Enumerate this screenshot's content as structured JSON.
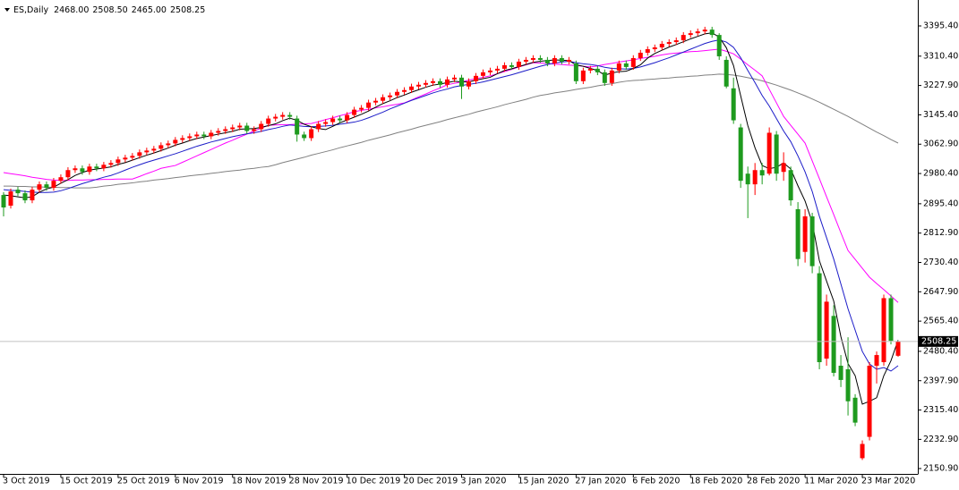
{
  "chart_data": {
    "type": "candlestick",
    "header": {
      "symbol": "ES,Daily",
      "values": [
        2468,
        2508.5,
        2465,
        2508.25
      ],
      "value_labels": [
        "2468.00",
        "2508.50",
        "2465.00",
        "2508.25"
      ]
    },
    "categories": [
      "3 Oct 2019",
      null,
      null,
      null,
      null,
      null,
      null,
      null,
      "15 Oct 2019",
      null,
      null,
      null,
      null,
      null,
      null,
      null,
      "25 Oct 2019",
      null,
      null,
      null,
      null,
      null,
      null,
      null,
      "6 Nov 2019",
      null,
      null,
      null,
      null,
      null,
      null,
      null,
      "18 Nov 2019",
      null,
      null,
      null,
      null,
      null,
      null,
      null,
      "28 Nov 2019",
      null,
      null,
      null,
      null,
      null,
      null,
      null,
      "10 Dec 2019",
      null,
      null,
      null,
      null,
      null,
      null,
      null,
      "20 Dec 2019",
      null,
      null,
      null,
      null,
      null,
      null,
      null,
      "3 Jan 2020",
      null,
      null,
      null,
      null,
      null,
      null,
      null,
      "15 Jan 2020",
      null,
      null,
      null,
      null,
      null,
      null,
      null,
      "27 Jan 2020",
      null,
      null,
      null,
      null,
      null,
      null,
      null,
      "6 Feb 2020",
      null,
      null,
      null,
      null,
      null,
      null,
      null,
      "18 Feb 2020",
      null,
      null,
      null,
      null,
      null,
      null,
      null,
      "28 Feb 2020",
      null,
      null,
      null,
      null,
      null,
      null,
      null,
      "11 Mar 2020",
      null,
      null,
      null,
      null,
      null,
      null,
      null,
      "23 Mar 2020",
      null,
      null,
      null,
      null,
      null
    ],
    "open": [
      2920,
      2890,
      2935,
      2925,
      2905,
      2935,
      2950,
      2940,
      2960,
      2970,
      2990,
      2995,
      2985,
      3000,
      2995,
      3005,
      3010,
      3020,
      3025,
      3030,
      3040,
      3045,
      3050,
      3060,
      3065,
      3075,
      3080,
      3085,
      3090,
      3085,
      3095,
      3100,
      3105,
      3110,
      3115,
      3100,
      3105,
      3120,
      3135,
      3140,
      3145,
      3135,
      3090,
      3080,
      3105,
      3120,
      3125,
      3135,
      3130,
      3145,
      3160,
      3165,
      3180,
      3185,
      3195,
      3200,
      3210,
      3215,
      3225,
      3230,
      3235,
      3240,
      3230,
      3245,
      3250,
      3225,
      3240,
      3255,
      3265,
      3270,
      3275,
      3285,
      3280,
      3295,
      3300,
      3305,
      3300,
      3290,
      3305,
      3295,
      3290,
      3240,
      3270,
      3275,
      3265,
      3235,
      3270,
      3290,
      3280,
      3305,
      3320,
      3330,
      3335,
      3345,
      3350,
      3355,
      3370,
      3375,
      3380,
      3385,
      3370,
      3300,
      3220,
      3110,
      2980,
      2950,
      2990,
      2980,
      3090,
      2985,
      2990,
      2880,
      2760,
      2860,
      2700,
      2460,
      2580,
      2440,
      2430,
      2350,
      2180,
      2240,
      2440,
      2450,
      2630,
      2468
    ],
    "high": [
      2928,
      2938,
      2943,
      2933,
      2943,
      2958,
      2958,
      2968,
      2978,
      2998,
      3003,
      3003,
      3008,
      3008,
      3013,
      3018,
      3028,
      3033,
      3038,
      3048,
      3053,
      3058,
      3068,
      3073,
      3083,
      3088,
      3093,
      3098,
      3098,
      3103,
      3108,
      3113,
      3118,
      3123,
      3123,
      3113,
      3128,
      3143,
      3148,
      3153,
      3153,
      3143,
      3098,
      3113,
      3128,
      3133,
      3143,
      3143,
      3153,
      3168,
      3173,
      3188,
      3193,
      3203,
      3208,
      3218,
      3223,
      3233,
      3238,
      3243,
      3248,
      3248,
      3253,
      3258,
      3258,
      3248,
      3263,
      3273,
      3278,
      3283,
      3293,
      3293,
      3303,
      3308,
      3313,
      3313,
      3308,
      3313,
      3313,
      3308,
      3298,
      3278,
      3283,
      3283,
      3273,
      3278,
      3298,
      3298,
      3313,
      3328,
      3338,
      3343,
      3353,
      3358,
      3363,
      3378,
      3383,
      3388,
      3393,
      3393,
      3375,
      3310,
      3250,
      3120,
      3000,
      3010,
      3010,
      3110,
      3100,
      3040,
      3000,
      2900,
      2880,
      2870,
      2720,
      2640,
      2610,
      2470,
      2520,
      2360,
      2230,
      2450,
      2480,
      2640,
      2640,
      2508.5
    ],
    "low": [
      2860,
      2882,
      2917,
      2897,
      2897,
      2927,
      2932,
      2932,
      2952,
      2962,
      2982,
      2977,
      2977,
      2987,
      2987,
      2997,
      3002,
      3012,
      3017,
      3022,
      3032,
      3037,
      3042,
      3052,
      3057,
      3067,
      3072,
      3077,
      3077,
      3077,
      3087,
      3092,
      3097,
      3102,
      3092,
      3092,
      3097,
      3112,
      3127,
      3132,
      3132,
      3070,
      3072,
      3072,
      3097,
      3112,
      3117,
      3122,
      3122,
      3137,
      3152,
      3157,
      3172,
      3177,
      3187,
      3192,
      3202,
      3207,
      3217,
      3222,
      3227,
      3222,
      3222,
      3237,
      3190,
      3217,
      3232,
      3247,
      3257,
      3262,
      3267,
      3272,
      3272,
      3287,
      3292,
      3292,
      3282,
      3282,
      3287,
      3287,
      3232,
      3232,
      3262,
      3257,
      3227,
      3227,
      3262,
      3272,
      3272,
      3297,
      3312,
      3322,
      3327,
      3337,
      3342,
      3347,
      3362,
      3367,
      3372,
      3362,
      3300,
      3220,
      3120,
      2940,
      2855,
      2920,
      2950,
      2975,
      2960,
      2960,
      2890,
      2720,
      2730,
      2700,
      2430,
      2440,
      2410,
      2380,
      2300,
      2270,
      2175,
      2230,
      2390,
      2440,
      2500,
      2465
    ],
    "close": [
      2885,
      2930,
      2925,
      2905,
      2935,
      2950,
      2940,
      2960,
      2970,
      2990,
      2995,
      2985,
      3000,
      2995,
      3005,
      3010,
      3020,
      3025,
      3030,
      3040,
      3045,
      3050,
      3060,
      3065,
      3075,
      3080,
      3085,
      3090,
      3085,
      3095,
      3100,
      3105,
      3110,
      3115,
      3100,
      3105,
      3120,
      3135,
      3140,
      3145,
      3140,
      3090,
      3080,
      3105,
      3120,
      3125,
      3135,
      3130,
      3145,
      3160,
      3165,
      3180,
      3185,
      3195,
      3200,
      3210,
      3215,
      3225,
      3230,
      3235,
      3240,
      3230,
      3245,
      3250,
      3225,
      3240,
      3255,
      3265,
      3270,
      3275,
      3285,
      3280,
      3295,
      3300,
      3305,
      3300,
      3290,
      3305,
      3295,
      3300,
      3240,
      3270,
      3275,
      3265,
      3235,
      3270,
      3290,
      3280,
      3305,
      3320,
      3330,
      3335,
      3345,
      3350,
      3355,
      3370,
      3375,
      3380,
      3385,
      3370,
      3310,
      3225,
      3130,
      2960,
      2950,
      2990,
      2975,
      3095,
      2980,
      3010,
      2905,
      2740,
      2860,
      2720,
      2450,
      2620,
      2420,
      2400,
      2340,
      2280,
      2220,
      2440,
      2470,
      2630,
      2510,
      2508.25
    ],
    "up_color": "#ff0000",
    "down_color": "#1e9a1e",
    "lines": [
      {
        "color": "#808080",
        "values": [
          2945,
          2945,
          2944,
          2944,
          2943,
          2943,
          2942,
          2942,
          2941,
          2941,
          2940,
          2940,
          2940,
          2942,
          2945,
          2947,
          2950,
          2952,
          2954,
          2957,
          2959,
          2962,
          2964,
          2966,
          2969,
          2971,
          2974,
          2976,
          2978,
          2981,
          2983,
          2986,
          2988,
          2990,
          2993,
          2995,
          2998,
          3000,
          3005,
          3011,
          3016,
          3021,
          3026,
          3032,
          3037,
          3042,
          3047,
          3053,
          3058,
          3063,
          3068,
          3074,
          3079,
          3084,
          3089,
          3095,
          3100,
          3105,
          3111,
          3116,
          3121,
          3126,
          3132,
          3137,
          3142,
          3147,
          3153,
          3158,
          3163,
          3168,
          3174,
          3179,
          3184,
          3189,
          3195,
          3200,
          3203,
          3207,
          3210,
          3213,
          3217,
          3220,
          3223,
          3227,
          3230,
          3233,
          3237,
          3240,
          3242,
          3243,
          3245,
          3246,
          3248,
          3249,
          3251,
          3252,
          3254,
          3255,
          3257,
          3258,
          3260,
          3259,
          3257,
          3254,
          3250,
          3246,
          3241,
          3235,
          3229,
          3222,
          3215,
          3207,
          3199,
          3190,
          3181,
          3171,
          3161,
          3151,
          3141,
          3130,
          3119,
          3108,
          3097,
          3087,
          3076,
          3066
        ]
      },
      {
        "color": "#ff00ff",
        "values": [
          2983,
          2980,
          2977,
          2974,
          2970,
          2967,
          2964,
          2962,
          2961,
          2961,
          2962,
          2962,
          2963,
          2963,
          2964,
          2964,
          2965,
          2965,
          2965,
          2972,
          2980,
          2987,
          2995,
          2999,
          3003,
          3012,
          3021,
          3030,
          3039,
          3048,
          3057,
          3066,
          3074,
          3083,
          3091,
          3100,
          3108,
          3116,
          3117,
          3118,
          3118,
          3119,
          3120,
          3121,
          3126,
          3132,
          3137,
          3143,
          3148,
          3154,
          3158,
          3161,
          3165,
          3168,
          3172,
          3175,
          3179,
          3187,
          3196,
          3204,
          3213,
          3221,
          3230,
          3234,
          3238,
          3243,
          3247,
          3251,
          3255,
          3261,
          3267,
          3273,
          3280,
          3286,
          3292,
          3291,
          3290,
          3288,
          3287,
          3285,
          3284,
          3282,
          3280,
          3283,
          3287,
          3290,
          3294,
          3297,
          3300,
          3304,
          3307,
          3310,
          3314,
          3317,
          3319,
          3321,
          3323,
          3324,
          3326,
          3328,
          3330,
          3324,
          3317,
          3302,
          3286,
          3271,
          3255,
          3217,
          3179,
          3141,
          3116,
          3091,
          3066,
          3016,
          2966,
          2915,
          2865,
          2814,
          2764,
          2739,
          2714,
          2689,
          2671,
          2654,
          2636,
          2618
        ]
      },
      {
        "color": "#1c1cc8",
        "values": [
          2935,
          2933,
          2932,
          2930,
          2928,
          2927,
          2927,
          2928,
          2932,
          2938,
          2945,
          2952,
          2958,
          2964,
          2970,
          2975,
          2982,
          2990,
          2998,
          3005,
          3012,
          3018,
          3024,
          3030,
          3036,
          3043,
          3050,
          3057,
          3063,
          3069,
          3074,
          3079,
          3084,
          3088,
          3092,
          3095,
          3099,
          3104,
          3108,
          3113,
          3117,
          3115,
          3113,
          3112,
          3113,
          3114,
          3116,
          3119,
          3122,
          3125,
          3130,
          3137,
          3145,
          3153,
          3162,
          3170,
          3178,
          3186,
          3193,
          3200,
          3207,
          3213,
          3218,
          3224,
          3228,
          3231,
          3234,
          3238,
          3243,
          3248,
          3253,
          3258,
          3264,
          3270,
          3276,
          3282,
          3287,
          3291,
          3294,
          3296,
          3292,
          3289,
          3287,
          3284,
          3279,
          3276,
          3275,
          3274,
          3276,
          3280,
          3286,
          3292,
          3299,
          3306,
          3314,
          3322,
          3330,
          3338,
          3346,
          3352,
          3356,
          3350,
          3335,
          3306,
          3270,
          3236,
          3200,
          3170,
          3135,
          3100,
          3070,
          3030,
          2985,
          2930,
          2860,
          2800,
          2740,
          2670,
          2600,
          2540,
          2480,
          2445,
          2430,
          2435,
          2425,
          2440
        ]
      },
      {
        "color": "#000000",
        "values": [
          2920,
          2918,
          2915,
          2912,
          2915,
          2928,
          2937,
          2942,
          2953,
          2963,
          2975,
          2983,
          2990,
          2993,
          2996,
          2999,
          3006,
          3011,
          3018,
          3025,
          3032,
          3038,
          3045,
          3052,
          3060,
          3066,
          3073,
          3079,
          3083,
          3087,
          3091,
          3095,
          3099,
          3105,
          3106,
          3107,
          3110,
          3115,
          3120,
          3129,
          3136,
          3130,
          3119,
          3112,
          3107,
          3104,
          3113,
          3123,
          3131,
          3139,
          3147,
          3156,
          3167,
          3177,
          3185,
          3194,
          3201,
          3209,
          3216,
          3223,
          3229,
          3232,
          3236,
          3240,
          3238,
          3238,
          3243,
          3247,
          3251,
          3261,
          3270,
          3275,
          3281,
          3287,
          3293,
          3296,
          3298,
          3300,
          3299,
          3298,
          3286,
          3282,
          3276,
          3270,
          3257,
          3263,
          3267,
          3268,
          3276,
          3286,
          3305,
          3318,
          3327,
          3336,
          3343,
          3351,
          3359,
          3366,
          3373,
          3376,
          3364,
          3334,
          3284,
          3199,
          3115,
          3053,
          3003,
          2994,
          2998,
          3010,
          2993,
          2946,
          2903,
          2843,
          2735,
          2678,
          2622,
          2522,
          2446,
          2412,
          2332,
          2340,
          2350,
          2412,
          2454,
          2512
        ]
      }
    ],
    "ylim": [
      2135.8,
      3468.3
    ],
    "yticks": [
      {
        "value": 3395.4,
        "label": "3395.40"
      },
      {
        "value": 3310.4,
        "label": "3310.40"
      },
      {
        "value": 3227.9,
        "label": "3227.90"
      },
      {
        "value": 3145.4,
        "label": "3145.40"
      },
      {
        "value": 3062.9,
        "label": "3062.90"
      },
      {
        "value": 2980.4,
        "label": "2980.40"
      },
      {
        "value": 2895.4,
        "label": "2895.40"
      },
      {
        "value": 2812.9,
        "label": "2812.90"
      },
      {
        "value": 2730.4,
        "label": "2730.40"
      },
      {
        "value": 2647.9,
        "label": "2647.90"
      },
      {
        "value": 2565.4,
        "label": "2565.40"
      },
      {
        "value": 2480.4,
        "label": "2480.40"
      },
      {
        "value": 2397.9,
        "label": "2397.90"
      },
      {
        "value": 2315.4,
        "label": "2315.40"
      },
      {
        "value": 2232.9,
        "label": "2232.90"
      },
      {
        "value": 2150.9,
        "label": "2150.90"
      }
    ],
    "last_price": {
      "value": 2508.25,
      "label": "2508.25"
    }
  }
}
